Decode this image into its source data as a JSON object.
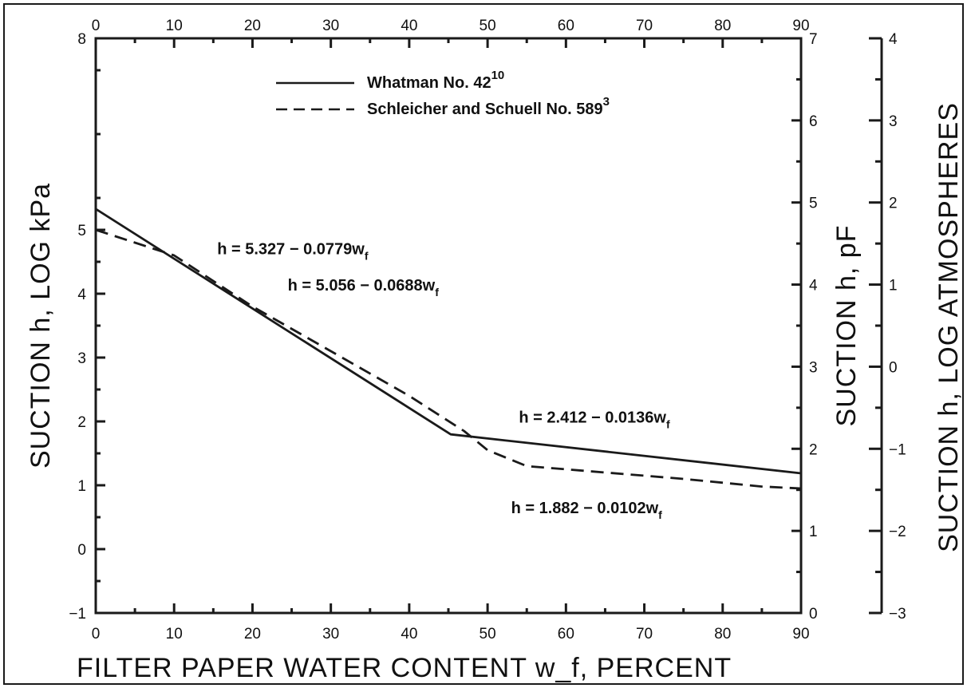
{
  "chart_data": {
    "type": "line",
    "xlabel": "FILTER PAPER WATER CONTENT w_f, PERCENT",
    "ylabel": "SUCTION h, LOG kPa",
    "y2label": "SUCTION h, pF",
    "y3label": "SUCTION h, LOG ATMOSPHERES",
    "xlim": [
      0,
      90
    ],
    "ylim": [
      -1,
      8
    ],
    "y2lim": [
      0,
      7
    ],
    "y3lim": [
      -3,
      4
    ],
    "x_ticks": [
      0,
      10,
      20,
      30,
      40,
      50,
      60,
      70,
      80,
      90
    ],
    "y_ticks": [
      -1,
      0,
      1,
      2,
      3,
      4,
      5,
      8
    ],
    "y2_ticks": [
      0,
      1,
      2,
      3,
      4,
      5,
      6,
      7
    ],
    "y3_ticks": [
      -3,
      -2,
      -1,
      0,
      1,
      2,
      3,
      4
    ],
    "y_tick_labels": [
      "−1",
      "0",
      "1",
      "2",
      "3",
      "4",
      "5",
      "8"
    ],
    "y3_tick_labels": [
      "−3",
      "−2",
      "−1",
      "0",
      "1",
      "2",
      "3",
      "4"
    ],
    "grid": false,
    "legend_position": "top-center",
    "series": [
      {
        "name": "Whatman No. 42",
        "name_sup": "10",
        "style": "solid",
        "x": [
          0,
          45.3,
          90
        ],
        "y": [
          5.327,
          1.797,
          1.188
        ]
      },
      {
        "name": "Schleicher and Schuell No. 589",
        "name_sup": "3",
        "style": "dashed",
        "x": [
          0,
          10,
          20,
          30,
          40,
          47,
          50,
          55,
          65,
          75,
          85,
          90
        ],
        "y": [
          5.0,
          4.6,
          3.8,
          3.1,
          2.4,
          1.85,
          1.55,
          1.3,
          1.2,
          1.1,
          0.98,
          0.95
        ]
      }
    ],
    "annotations": [
      {
        "text": "h = 5.327 − 0.0779w",
        "sub": "f",
        "x": 15.5,
        "y": 4.62
      },
      {
        "text": "h = 5.056 − 0.0688w",
        "sub": "f",
        "x": 24.5,
        "y": 4.05
      },
      {
        "text": "h = 2.412 − 0.0136w",
        "sub": "f",
        "x": 54,
        "y": 1.98
      },
      {
        "text": "h = 1.882 − 0.0102w",
        "sub": "f",
        "x": 53,
        "y": 0.56
      }
    ]
  }
}
